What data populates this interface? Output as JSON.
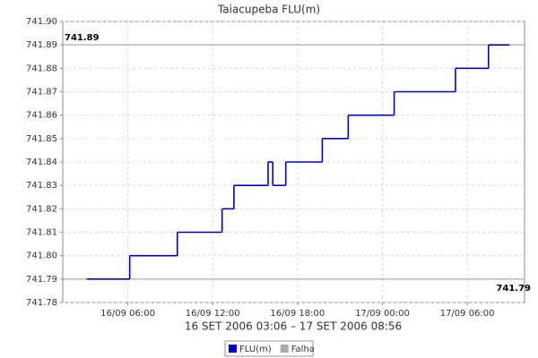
{
  "chart_data": {
    "type": "line",
    "step": "post",
    "title": "Taiacupeba FLU(m)",
    "subtitle": "16 SET 2006 03:06 – 17 SET 2006 08:56",
    "x": [
      "2006-09-16 03:06",
      "2006-09-16 06:08",
      "2006-09-16 09:30",
      "2006-09-16 12:40",
      "2006-09-16 13:30",
      "2006-09-16 15:55",
      "2006-09-16 16:15",
      "2006-09-16 17:10",
      "2006-09-16 19:45",
      "2006-09-16 21:35",
      "2006-09-17 00:50",
      "2006-09-17 05:10",
      "2006-09-17 07:30",
      "2006-09-17 08:56"
    ],
    "series": [
      {
        "name": "FLU(m)",
        "color": "#0000cc",
        "values": [
          741.79,
          741.8,
          741.81,
          741.82,
          741.83,
          741.84,
          741.83,
          741.84,
          741.85,
          741.86,
          741.87,
          741.88,
          741.89,
          741.89
        ]
      },
      {
        "name": "Falha",
        "color": "#aaaaaa",
        "values": [
          null,
          null,
          null,
          null,
          null,
          null,
          null,
          null,
          null,
          null,
          null,
          null,
          null,
          null
        ]
      }
    ],
    "xlim": [
      "2006-09-16 01:24",
      "2006-09-17 10:03"
    ],
    "xticks": [
      {
        "value": "2006-09-16 06:00",
        "label": "16/09 06:00"
      },
      {
        "value": "2006-09-16 12:00",
        "label": "16/09 12:00"
      },
      {
        "value": "2006-09-16 18:00",
        "label": "16/09 18:00"
      },
      {
        "value": "2006-09-17 00:00",
        "label": "17/09 00:00"
      },
      {
        "value": "2006-09-17 06:00",
        "label": "17/09 06:00"
      }
    ],
    "ylim": [
      741.78,
      741.9
    ],
    "yticks": [
      741.78,
      741.79,
      {
        "value": 741.8,
        "label": "741.80"
      },
      741.81,
      741.82,
      741.83,
      741.84,
      741.85,
      741.86,
      741.87,
      741.88,
      741.89,
      {
        "value": 741.9,
        "label": "741.90"
      }
    ],
    "reference_lines": [
      741.89,
      741.79
    ],
    "grid": true
  }
}
